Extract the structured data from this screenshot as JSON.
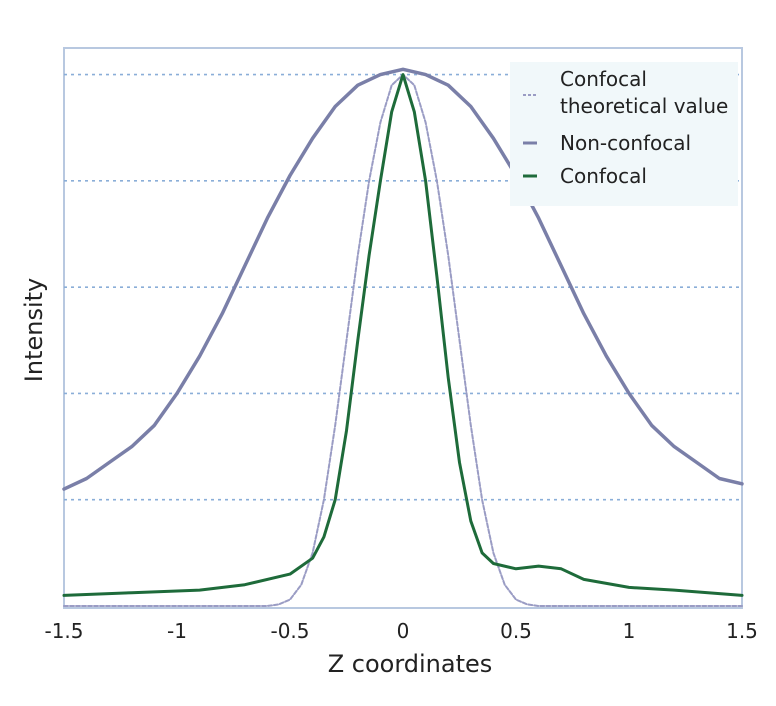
{
  "chart_data": {
    "type": "line",
    "title": "",
    "xlabel": "Z coordinates",
    "ylabel": "Intensity",
    "xlim": [
      -1.5,
      1.5
    ],
    "ylim": [
      0,
      1.05
    ],
    "x_ticks": [
      "-1.5",
      "-1",
      "-0.5",
      "0",
      "0.5",
      "1",
      "1.5"
    ],
    "x_tick_values": [
      -1.5,
      -1,
      -0.5,
      0,
      0.5,
      1,
      1.5
    ],
    "grid_y": [
      0.2,
      0.4,
      0.6,
      0.8,
      1.0
    ],
    "grid": true,
    "legend_position": "top-right",
    "series": [
      {
        "name": "Confocal theoretical value",
        "legend_lines": [
          "Confocal",
          "theoretical value"
        ],
        "color": "#9a9cc4",
        "style": "dashed",
        "x": [
          -1.5,
          -0.6,
          -0.55,
          -0.5,
          -0.45,
          -0.4,
          -0.35,
          -0.3,
          -0.25,
          -0.2,
          -0.15,
          -0.1,
          -0.05,
          0,
          0.05,
          0.1,
          0.15,
          0.2,
          0.25,
          0.3,
          0.35,
          0.4,
          0.45,
          0.5,
          0.55,
          0.6,
          1.5
        ],
        "y": [
          0,
          0,
          0.003,
          0.012,
          0.04,
          0.1,
          0.2,
          0.34,
          0.5,
          0.66,
          0.8,
          0.91,
          0.98,
          1.0,
          0.98,
          0.91,
          0.8,
          0.66,
          0.5,
          0.34,
          0.2,
          0.1,
          0.04,
          0.012,
          0.003,
          0,
          0
        ]
      },
      {
        "name": "Non-confocal",
        "color": "#7a7fa8",
        "style": "solid",
        "x": [
          -1.5,
          -1.4,
          -1.3,
          -1.2,
          -1.1,
          -1.0,
          -0.9,
          -0.8,
          -0.7,
          -0.6,
          -0.5,
          -0.4,
          -0.3,
          -0.2,
          -0.1,
          0,
          0.1,
          0.2,
          0.3,
          0.4,
          0.5,
          0.6,
          0.7,
          0.8,
          0.9,
          1.0,
          1.1,
          1.2,
          1.3,
          1.4,
          1.5
        ],
        "y": [
          0.22,
          0.24,
          0.27,
          0.3,
          0.34,
          0.4,
          0.47,
          0.55,
          0.64,
          0.73,
          0.81,
          0.88,
          0.94,
          0.98,
          1.0,
          1.01,
          1.0,
          0.98,
          0.94,
          0.88,
          0.81,
          0.73,
          0.64,
          0.55,
          0.47,
          0.4,
          0.34,
          0.3,
          0.27,
          0.24,
          0.23
        ]
      },
      {
        "name": "Confocal",
        "color": "#1e6b3a",
        "style": "solid",
        "x": [
          -1.5,
          -1.2,
          -0.9,
          -0.7,
          -0.5,
          -0.4,
          -0.35,
          -0.3,
          -0.25,
          -0.2,
          -0.15,
          -0.1,
          -0.05,
          0,
          0.05,
          0.1,
          0.15,
          0.2,
          0.25,
          0.3,
          0.35,
          0.4,
          0.5,
          0.6,
          0.7,
          0.8,
          1.0,
          1.2,
          1.5
        ],
        "y": [
          0.02,
          0.025,
          0.03,
          0.04,
          0.06,
          0.09,
          0.13,
          0.2,
          0.33,
          0.5,
          0.66,
          0.8,
          0.93,
          1.0,
          0.93,
          0.8,
          0.62,
          0.43,
          0.27,
          0.16,
          0.1,
          0.08,
          0.07,
          0.075,
          0.07,
          0.05,
          0.035,
          0.03,
          0.02
        ]
      }
    ]
  }
}
